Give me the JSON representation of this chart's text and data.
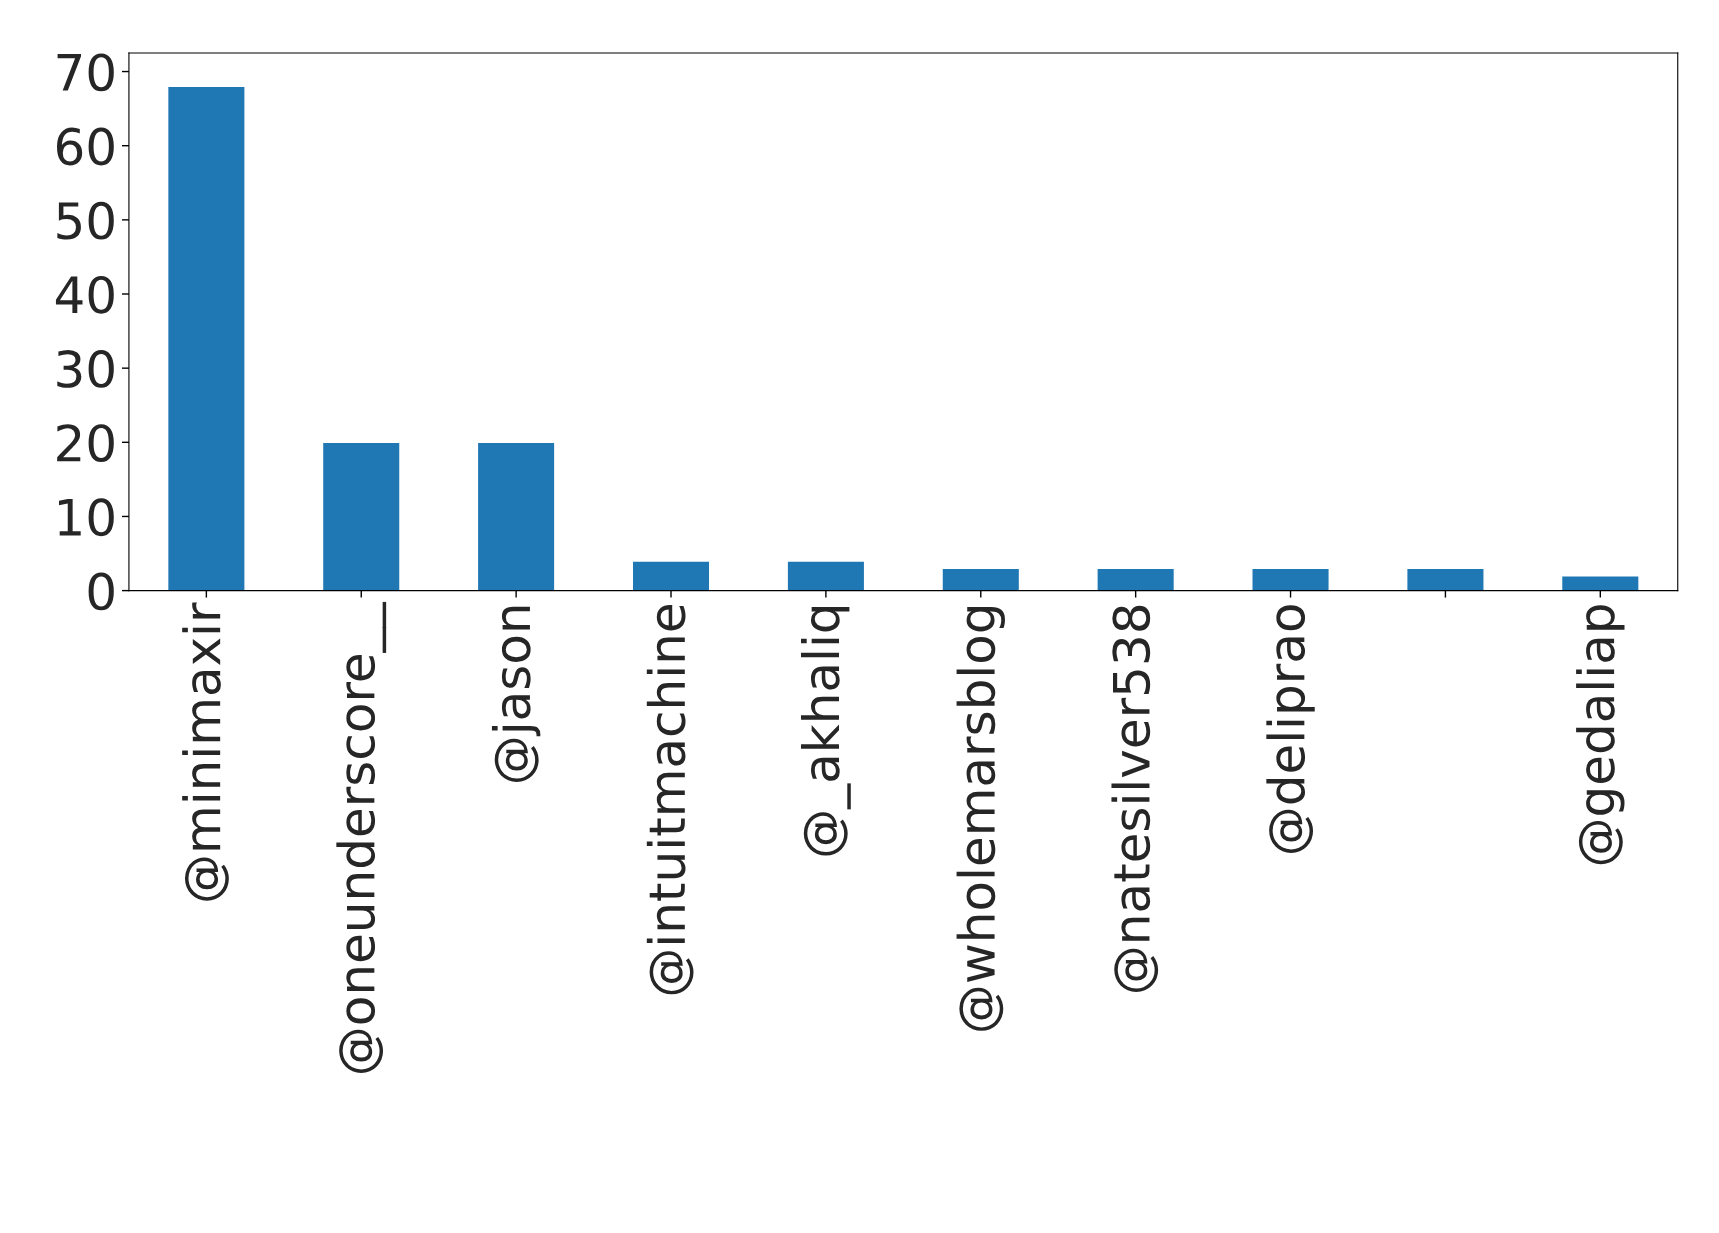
{
  "chart_data": {
    "type": "bar",
    "categories": [
      "@minimaxir",
      "@oneunderscore__",
      "@jason",
      "@intuitmachine",
      "@_akhaliq",
      "@wholemarsblog",
      "@natesilver538",
      "@deliprao",
      null,
      "@gedaliap"
    ],
    "values": [
      68,
      20,
      20,
      4,
      4,
      3,
      3,
      3,
      3,
      2
    ],
    "color": "#1f77b4",
    "ylim": [
      0,
      72.5
    ],
    "yticks": [
      0,
      10,
      20,
      30,
      40,
      50,
      60,
      70
    ],
    "grid": false,
    "legend": false
  }
}
